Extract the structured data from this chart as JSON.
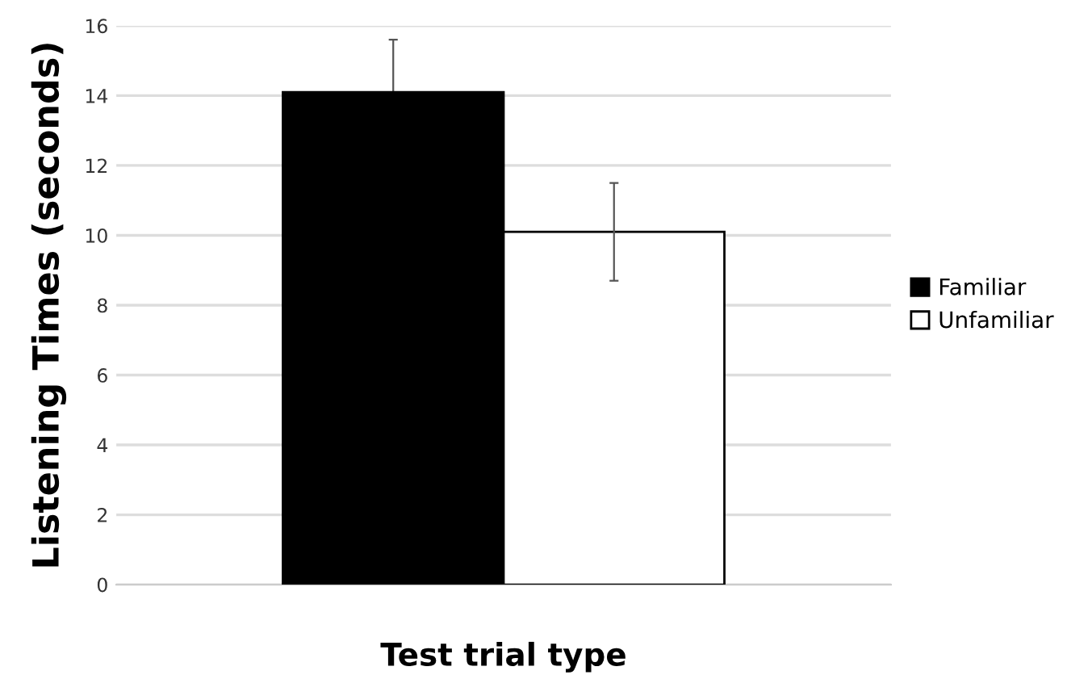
{
  "chart_data": {
    "type": "bar",
    "xlabel": "Test trial type",
    "ylabel": "Listening Times (seconds)",
    "categories": [
      null
    ],
    "series": [
      {
        "name": "Familiar",
        "color": "#000000",
        "values": [
          14.1
        ],
        "errors": [
          1.5
        ]
      },
      {
        "name": "Unfamiliar",
        "color": "#ffffff",
        "values": [
          10.1
        ],
        "errors": [
          1.4
        ]
      }
    ],
    "ylim": [
      0,
      16
    ],
    "yticks": [
      0,
      2,
      4,
      6,
      8,
      10,
      12,
      14,
      16
    ],
    "grid": "y",
    "legend": "right"
  }
}
